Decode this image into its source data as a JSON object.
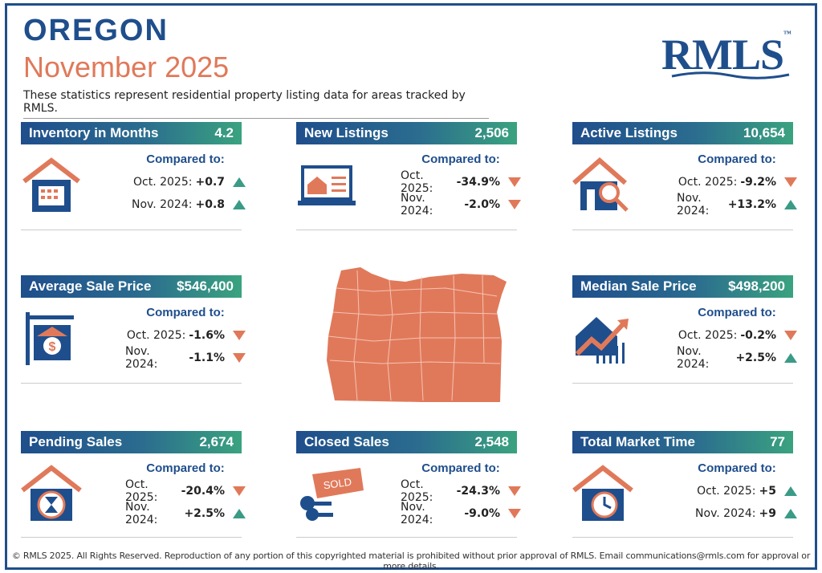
{
  "header": {
    "state": "OREGON",
    "period": "November 2025",
    "subtitle": "These statistics represent residential property listing data for areas tracked by RMLS.",
    "logo": "RMLS",
    "logo_tm": "™"
  },
  "compared_label": "Compared to:",
  "metrics": [
    {
      "title": "Inventory in Months",
      "value": "4.2",
      "icon": "house-calendar-icon",
      "rows": [
        {
          "label": "Oct. 2025:",
          "value": "+0.7",
          "trend": "up"
        },
        {
          "label": "Nov. 2024:",
          "value": "+0.8",
          "trend": "up"
        }
      ]
    },
    {
      "title": "New Listings",
      "value": "2,506",
      "icon": "laptop-listing-icon",
      "rows": [
        {
          "label": "Oct. 2025:",
          "value": "-34.9%",
          "trend": "down"
        },
        {
          "label": "Nov. 2024:",
          "value": "-2.0%",
          "trend": "down"
        }
      ]
    },
    {
      "title": "Active Listings",
      "value": "10,654",
      "icon": "house-magnifier-icon",
      "rows": [
        {
          "label": "Oct. 2025:",
          "value": "-9.2%",
          "trend": "down"
        },
        {
          "label": "Nov. 2024:",
          "value": "+13.2%",
          "trend": "up"
        }
      ]
    },
    {
      "title": "Average Sale Price",
      "value": "$546,400",
      "icon": "house-sign-dollar-icon",
      "rows": [
        {
          "label": "Oct. 2025:",
          "value": "-1.6%",
          "trend": "down"
        },
        {
          "label": "Nov. 2024:",
          "value": "-1.1%",
          "trend": "down"
        }
      ]
    },
    {
      "title": "Median Sale Price",
      "value": "$498,200",
      "icon": "house-chart-icon",
      "rows": [
        {
          "label": "Oct. 2025:",
          "value": "-0.2%",
          "trend": "down"
        },
        {
          "label": "Nov. 2024:",
          "value": "+2.5%",
          "trend": "up"
        }
      ]
    },
    {
      "title": "Pending Sales",
      "value": "2,674",
      "icon": "house-hourglass-icon",
      "rows": [
        {
          "label": "Oct. 2025:",
          "value": "-20.4%",
          "trend": "down"
        },
        {
          "label": "Nov. 2024:",
          "value": "+2.5%",
          "trend": "up"
        }
      ]
    },
    {
      "title": "Closed Sales",
      "value": "2,548",
      "icon": "sold-keys-icon",
      "tag": "SOLD",
      "rows": [
        {
          "label": "Oct. 2025:",
          "value": "-24.3%",
          "trend": "down"
        },
        {
          "label": "Nov. 2024:",
          "value": "-9.0%",
          "trend": "down"
        }
      ]
    },
    {
      "title": "Total Market Time",
      "value": "77",
      "icon": "house-clock-icon",
      "rows": [
        {
          "label": "Oct. 2025:",
          "value": "+5",
          "trend": "up"
        },
        {
          "label": "Nov. 2024:",
          "value": "+9",
          "trend": "up"
        }
      ]
    }
  ],
  "colors": {
    "navy": "#1f4e8c",
    "teal": "#3a9b86",
    "coral": "#e0795a"
  },
  "map_icon": "oregon-counties-map",
  "footer": "© RMLS 2025. All Rights Reserved. Reproduction of any portion of this copyrighted material is prohibited without prior approval of RMLS. Email communications@rmls.com for approval or more details."
}
